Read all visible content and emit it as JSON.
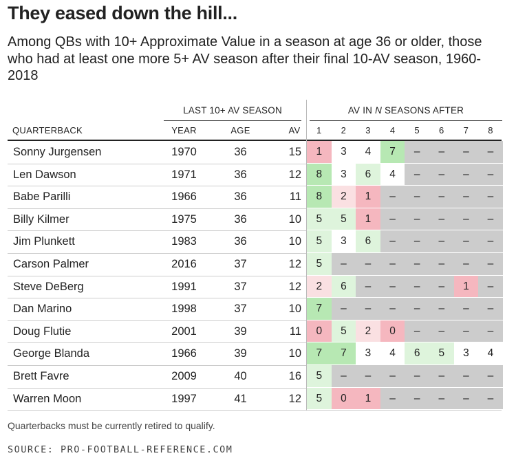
{
  "title": "They eased down the hill...",
  "subtitle": "Among QBs with 10+ Approximate Value in a season at age 36 or older, those who had at least one more 5+ AV season after their final 10-AV season, 1960-2018",
  "chart_data": {
    "type": "table",
    "group_headers": {
      "last_season": "LAST 10+ AV SEASON",
      "after_prefix": "AV IN ",
      "after_n": "N",
      "after_suffix": " SEASONS AFTER"
    },
    "columns": {
      "quarterback": "QUARTERBACK",
      "year": "YEAR",
      "age": "AGE",
      "av": "AV",
      "seasons_after": [
        "1",
        "2",
        "3",
        "4",
        "5",
        "6",
        "7",
        "8"
      ]
    },
    "empty_marker": "–",
    "rows": [
      {
        "qb": "Sonny Jurgensen",
        "year": "1970",
        "age": "36",
        "av": "15",
        "after": [
          1,
          3,
          4,
          7,
          null,
          null,
          null,
          null
        ]
      },
      {
        "qb": "Len Dawson",
        "year": "1971",
        "age": "36",
        "av": "12",
        "after": [
          8,
          3,
          6,
          4,
          null,
          null,
          null,
          null
        ]
      },
      {
        "qb": "Babe Parilli",
        "year": "1966",
        "age": "36",
        "av": "11",
        "after": [
          8,
          2,
          1,
          null,
          null,
          null,
          null,
          null
        ]
      },
      {
        "qb": "Billy Kilmer",
        "year": "1975",
        "age": "36",
        "av": "10",
        "after": [
          5,
          5,
          1,
          null,
          null,
          null,
          null,
          null
        ]
      },
      {
        "qb": "Jim Plunkett",
        "year": "1983",
        "age": "36",
        "av": "10",
        "after": [
          5,
          3,
          6,
          null,
          null,
          null,
          null,
          null
        ]
      },
      {
        "qb": "Carson Palmer",
        "year": "2016",
        "age": "37",
        "av": "12",
        "after": [
          5,
          null,
          null,
          null,
          null,
          null,
          null,
          null
        ]
      },
      {
        "qb": "Steve DeBerg",
        "year": "1991",
        "age": "37",
        "av": "12",
        "after": [
          2,
          6,
          null,
          null,
          null,
          null,
          1,
          null
        ]
      },
      {
        "qb": "Dan Marino",
        "year": "1998",
        "age": "37",
        "av": "10",
        "after": [
          7,
          null,
          null,
          null,
          null,
          null,
          null,
          null
        ]
      },
      {
        "qb": "Doug Flutie",
        "year": "2001",
        "age": "39",
        "av": "11",
        "after": [
          0,
          5,
          2,
          0,
          null,
          null,
          null,
          null
        ]
      },
      {
        "qb": "George Blanda",
        "year": "1966",
        "age": "39",
        "av": "10",
        "after": [
          7,
          7,
          3,
          4,
          6,
          5,
          3,
          4
        ]
      },
      {
        "qb": "Brett Favre",
        "year": "2009",
        "age": "40",
        "av": "16",
        "after": [
          5,
          null,
          null,
          null,
          null,
          null,
          null,
          null
        ]
      },
      {
        "qb": "Warren Moon",
        "year": "1997",
        "age": "41",
        "av": "12",
        "after": [
          5,
          0,
          1,
          null,
          null,
          null,
          null,
          null
        ]
      }
    ],
    "colors": {
      "empty_gray": "#cccccc",
      "green_strong": "#b7e8b3",
      "green_light": "#def4dc",
      "pink_light": "#fae0e2",
      "pink_strong": "#f5b7bf",
      "neutral": "#ffffff"
    }
  },
  "footnote": "Quarterbacks must be currently retired to qualify.",
  "source": "SOURCE: PRO-FOOTBALL-REFERENCE.COM"
}
